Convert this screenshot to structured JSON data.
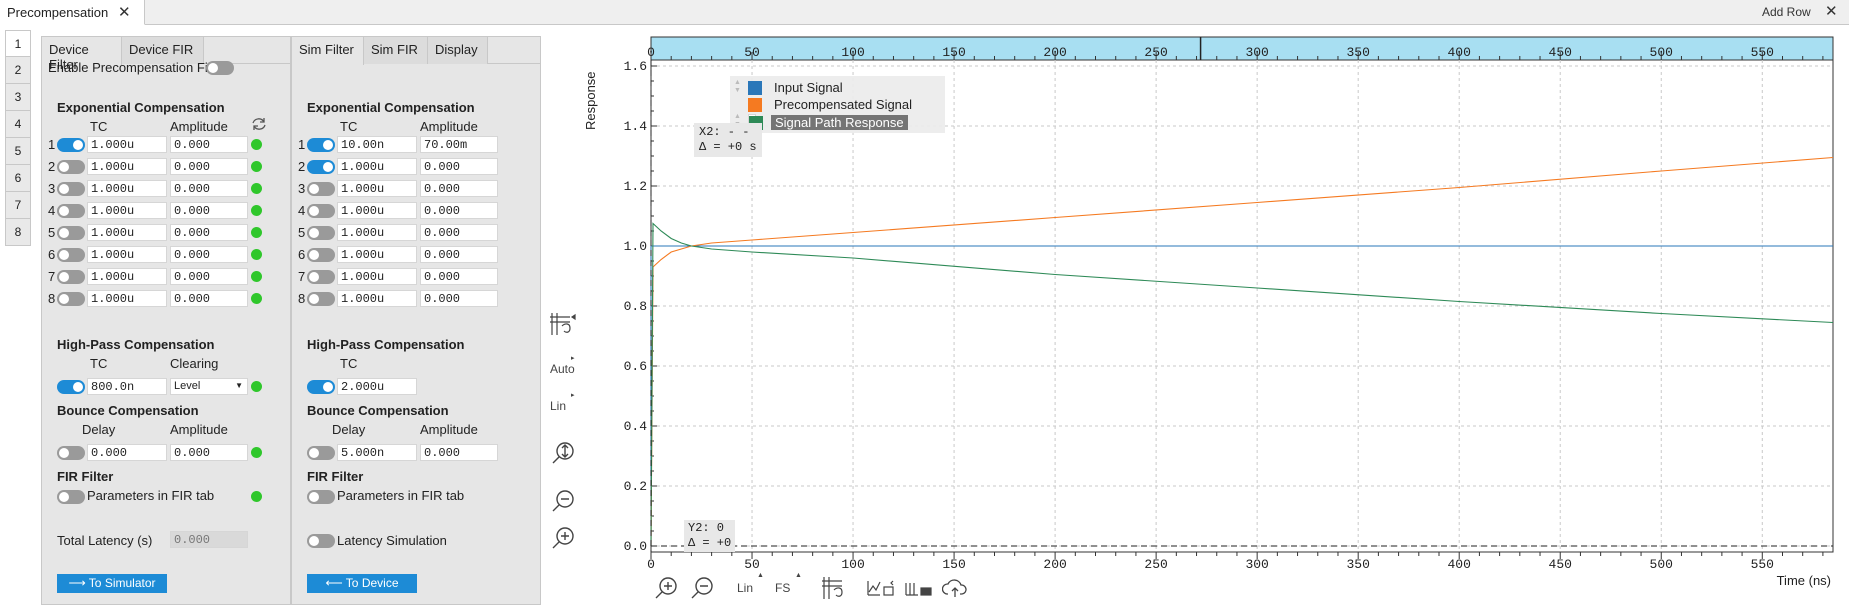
{
  "app": {
    "tab_title": "Precompensation",
    "add_row": "Add Row"
  },
  "row_tabs": [
    "1",
    "2",
    "3",
    "4",
    "5",
    "6",
    "7",
    "8"
  ],
  "device": {
    "tabs": [
      "Device Filter",
      "Device FIR"
    ],
    "enable_label": "Enable Precompensation Filter",
    "exp_title": "Exponential Compensation",
    "col_tc": "TC",
    "col_amp": "Amplitude",
    "exp_rows": [
      {
        "n": "1",
        "on": true,
        "tc": "1.000u",
        "amp": "0.000"
      },
      {
        "n": "2",
        "on": false,
        "tc": "1.000u",
        "amp": "0.000"
      },
      {
        "n": "3",
        "on": false,
        "tc": "1.000u",
        "amp": "0.000"
      },
      {
        "n": "4",
        "on": false,
        "tc": "1.000u",
        "amp": "0.000"
      },
      {
        "n": "5",
        "on": false,
        "tc": "1.000u",
        "amp": "0.000"
      },
      {
        "n": "6",
        "on": false,
        "tc": "1.000u",
        "amp": "0.000"
      },
      {
        "n": "7",
        "on": false,
        "tc": "1.000u",
        "amp": "0.000"
      },
      {
        "n": "8",
        "on": false,
        "tc": "1.000u",
        "amp": "0.000"
      }
    ],
    "hp_title": "High-Pass Compensation",
    "hp_tc_label": "TC",
    "hp_clear_label": "Clearing",
    "hp_tc": "800.0n",
    "hp_clearing": "Level",
    "bounce_title": "Bounce Compensation",
    "bounce_delay_label": "Delay",
    "bounce_amp_label": "Amplitude",
    "bounce_delay": "0.000",
    "bounce_amp": "0.000",
    "fir_title": "FIR Filter",
    "fir_label": "Parameters in FIR tab",
    "latency_label": "Total Latency (s)",
    "latency_value": "0.000",
    "button": "⟶ To Simulator"
  },
  "sim": {
    "tabs": [
      "Sim Filter",
      "Sim FIR",
      "Display"
    ],
    "exp_title": "Exponential Compensation",
    "col_tc": "TC",
    "col_amp": "Amplitude",
    "exp_rows": [
      {
        "n": "1",
        "on": true,
        "tc": "10.00n",
        "amp": "70.00m"
      },
      {
        "n": "2",
        "on": true,
        "tc": "1.000u",
        "amp": "0.000"
      },
      {
        "n": "3",
        "on": false,
        "tc": "1.000u",
        "amp": "0.000"
      },
      {
        "n": "4",
        "on": false,
        "tc": "1.000u",
        "amp": "0.000"
      },
      {
        "n": "5",
        "on": false,
        "tc": "1.000u",
        "amp": "0.000"
      },
      {
        "n": "6",
        "on": false,
        "tc": "1.000u",
        "amp": "0.000"
      },
      {
        "n": "7",
        "on": false,
        "tc": "1.000u",
        "amp": "0.000"
      },
      {
        "n": "8",
        "on": false,
        "tc": "1.000u",
        "amp": "0.000"
      }
    ],
    "hp_title": "High-Pass Compensation",
    "hp_tc_label": "TC",
    "hp_tc": "2.000u",
    "bounce_title": "Bounce Compensation",
    "bounce_delay_label": "Delay",
    "bounce_amp_label": "Amplitude",
    "bounce_delay": "5.000n",
    "bounce_amp": "0.000",
    "fir_title": "FIR Filter",
    "fir_label": "Parameters in FIR tab",
    "latency_label": "Latency Simulation",
    "button": "⟵ To Device"
  },
  "side_toolbar": {
    "auto": "Auto",
    "lin": "Lin"
  },
  "bottom_toolbar": {
    "lin": "Lin",
    "fs": "FS"
  },
  "cursors": {
    "x2": "X2: - -",
    "x2_delta": "Δ = +0 s",
    "y2": "Y2: 0",
    "y2_delta": "Δ = +0"
  },
  "chart_data": {
    "type": "line",
    "xlabel": "Time (ns)",
    "ylabel": "Response",
    "xlim": [
      0,
      585
    ],
    "ylim": [
      -0.02,
      1.62
    ],
    "x_ticks": [
      0,
      50,
      100,
      150,
      200,
      250,
      300,
      350,
      400,
      450,
      500,
      550
    ],
    "y_ticks": [
      "0.0",
      "0.2",
      "0.4",
      "0.6",
      "0.8",
      "1.0",
      "1.2",
      "1.4",
      "1.6"
    ],
    "grid": true,
    "legend_position": "top-left",
    "series": [
      {
        "name": "Input Signal",
        "color": "#2a77b9",
        "x": [
          0,
          0,
          585
        ],
        "y": [
          0,
          1.0,
          1.0
        ]
      },
      {
        "name": "Precompensated Signal",
        "color": "#f57a21",
        "x": [
          0,
          1,
          5,
          10,
          15,
          20,
          30,
          50,
          100,
          200,
          300,
          400,
          500,
          585
        ],
        "y": [
          0,
          0.93,
          0.955,
          0.98,
          0.99,
          1.0,
          1.01,
          1.02,
          1.045,
          1.095,
          1.145,
          1.195,
          1.25,
          1.295
        ]
      },
      {
        "name": "Signal Path Response",
        "color": "#2e8a57",
        "x": [
          0,
          1,
          5,
          10,
          15,
          20,
          30,
          50,
          100,
          200,
          300,
          400,
          500,
          585
        ],
        "y": [
          0,
          1.075,
          1.05,
          1.025,
          1.01,
          1.0,
          0.99,
          0.98,
          0.96,
          0.905,
          0.86,
          0.815,
          0.775,
          0.745
        ]
      }
    ]
  }
}
